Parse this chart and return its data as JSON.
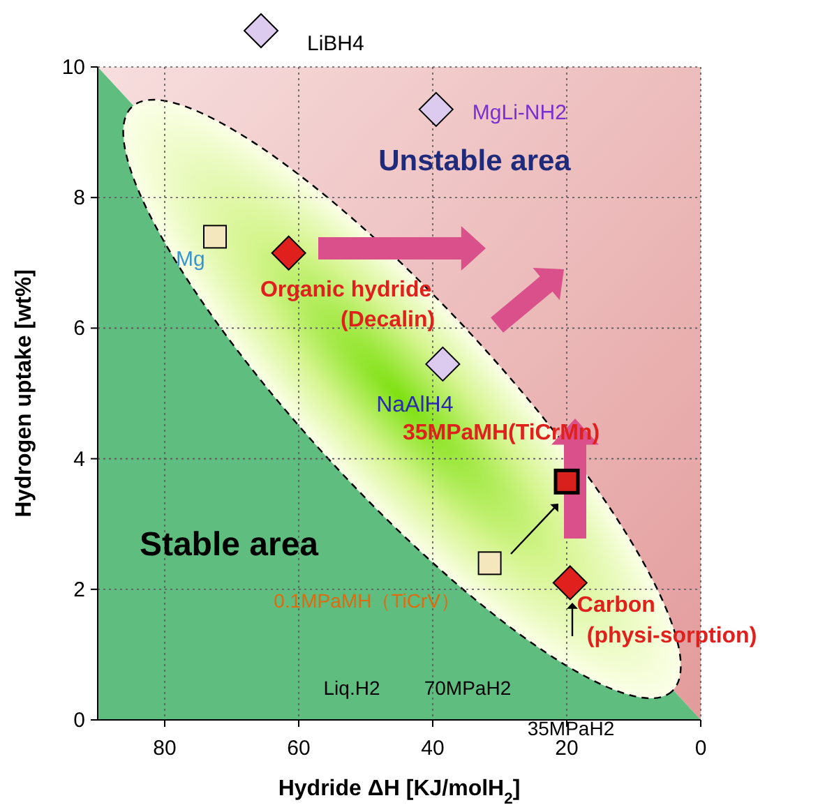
{
  "chart_data": {
    "type": "scatter",
    "xlabel": "Hydride ΔH [KJ/molH$_{2}$]",
    "ylabel": "Hydrogen uptake [wt%]",
    "xlim": [
      90,
      0
    ],
    "xticks": [
      80,
      60,
      40,
      20,
      0
    ],
    "ylim": [
      0,
      10
    ],
    "yticks": [
      0,
      2,
      4,
      6,
      8,
      10
    ],
    "grid": true,
    "series": [
      {
        "color": "#f5e7bd",
        "marker": "square",
        "x": [
          72.5,
          31.5
        ],
        "values": [
          7.4,
          2.4
        ]
      },
      {
        "color": "#dccbee",
        "marker": "diamond",
        "x": [
          39.5,
          38.5
        ],
        "values": [
          9.35,
          5.45
        ]
      },
      {
        "color": "#e0201c",
        "marker": "diamond",
        "x": [
          61.5,
          19.5
        ],
        "values": [
          7.15,
          2.1
        ]
      },
      {
        "color": "#d8201c",
        "marker": "square",
        "x": [
          20
        ],
        "values": [
          3.65
        ]
      }
    ],
    "annotations": [
      "Unstable area",
      "Stable area",
      {
        "text": "Mg",
        "x": 72.5,
        "y": 7.4
      },
      {
        "text": "MgLi-NH2",
        "x": 39.5,
        "y": 9.35
      },
      {
        "text": "NaAlH4",
        "x": 38.5,
        "y": 5.45
      },
      {
        "text": "Organic hydride\n(Decalin)",
        "x": 61.5,
        "y": 7.15
      },
      {
        "text": "35MPaMH(TiCrMn)",
        "x": 20,
        "y": 3.65
      },
      {
        "text": "0.1MPaMH（TiCrV）",
        "x": 31.5,
        "y": 2.4
      },
      {
        "text": "Carbon\n(physi-sorption)",
        "x": 19.5,
        "y": 2.1
      },
      "Liq.H2",
      "70MPaH2",
      "35MPaH2",
      "LiBH4"
    ]
  }
}
